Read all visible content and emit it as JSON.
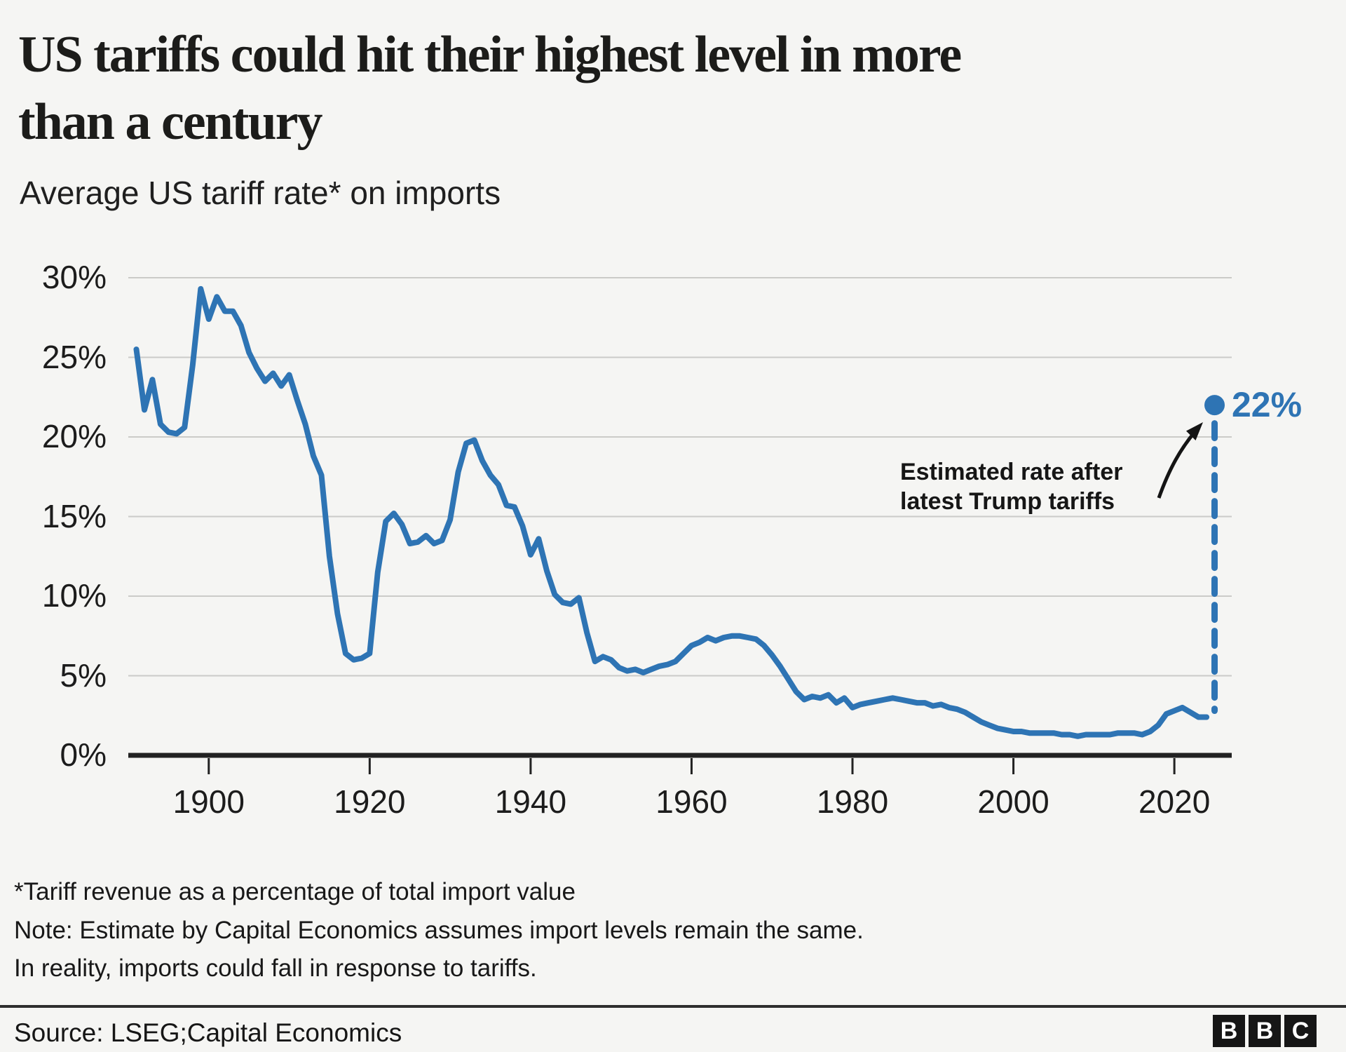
{
  "header": {
    "title_lines": [
      "US tariffs could hit their highest level in more",
      "than a century"
    ],
    "subtitle": "Average US tariff rate* on imports"
  },
  "chart_data": {
    "type": "line",
    "title": "Average US tariff rate* on imports",
    "xlabel": "",
    "ylabel": "Average US tariff rate (%)",
    "grid": true,
    "legend_position": "none",
    "line_color": "#2e74b4",
    "axis_color": "#222222",
    "grid_color": "#cbcbc8",
    "xlim": [
      1890,
      2027
    ],
    "ylim": [
      0,
      30
    ],
    "x_ticks": [
      1900,
      1920,
      1940,
      1960,
      1980,
      2000,
      2020
    ],
    "x_tick_labels": [
      "1900",
      "1920",
      "1940",
      "1960",
      "1980",
      "2000",
      "2020"
    ],
    "y_tick_values": [
      0,
      5,
      10,
      15,
      20,
      25,
      30
    ],
    "y_tick_labels": [
      "0%",
      "5%",
      "10%",
      "15%",
      "20%",
      "25%",
      "30%"
    ],
    "series": [
      {
        "name": "Average US tariff rate on imports",
        "x_start": 1891,
        "x_end": 2024,
        "x_step": 1,
        "values": [
          25.5,
          21.7,
          23.6,
          20.8,
          20.3,
          20.2,
          20.6,
          24.5,
          29.3,
          27.4,
          28.8,
          27.9,
          27.9,
          27.0,
          25.3,
          24.3,
          23.5,
          24.0,
          23.2,
          23.9,
          22.3,
          20.8,
          18.8,
          17.6,
          12.5,
          8.9,
          6.4,
          6.0,
          6.1,
          6.4,
          11.5,
          14.7,
          15.2,
          14.5,
          13.3,
          13.4,
          13.8,
          13.3,
          13.5,
          14.8,
          17.8,
          19.6,
          19.8,
          18.5,
          17.6,
          17.0,
          15.7,
          15.6,
          14.4,
          12.6,
          13.6,
          11.6,
          10.1,
          9.6,
          9.5,
          9.9,
          7.7,
          5.9,
          6.2,
          6.0,
          5.5,
          5.3,
          5.4,
          5.2,
          5.4,
          5.6,
          5.7,
          5.9,
          6.4,
          6.9,
          7.1,
          7.4,
          7.2,
          7.4,
          7.5,
          7.5,
          7.4,
          7.3,
          6.9,
          6.3,
          5.6,
          4.8,
          4.0,
          3.5,
          3.7,
          3.6,
          3.8,
          3.3,
          3.6,
          3.0,
          3.2,
          3.3,
          3.4,
          3.5,
          3.6,
          3.5,
          3.4,
          3.3,
          3.3,
          3.1,
          3.2,
          3.0,
          2.9,
          2.7,
          2.4,
          2.1,
          1.9,
          1.7,
          1.6,
          1.5,
          1.5,
          1.4,
          1.4,
          1.4,
          1.4,
          1.3,
          1.3,
          1.2,
          1.3,
          1.3,
          1.3,
          1.3,
          1.4,
          1.4,
          1.4,
          1.3,
          1.5,
          1.9,
          2.6,
          2.8,
          3.0,
          2.7,
          2.4,
          2.4
        ]
      }
    ],
    "estimate": {
      "year": 2025,
      "value": 22,
      "label": "22%",
      "annotation_line1": "Estimated rate after",
      "annotation_line2": "latest Trump tariffs"
    }
  },
  "footnotes": [
    "*Tariff revenue as a percentage of total import value",
    "Note: Estimate by Capital Economics assumes import levels remain the same.",
    "In reality, imports could fall in response to tariffs."
  ],
  "source": "Source: LSEG;Capital Economics",
  "logo": {
    "letters": [
      "B",
      "B",
      "C"
    ]
  }
}
